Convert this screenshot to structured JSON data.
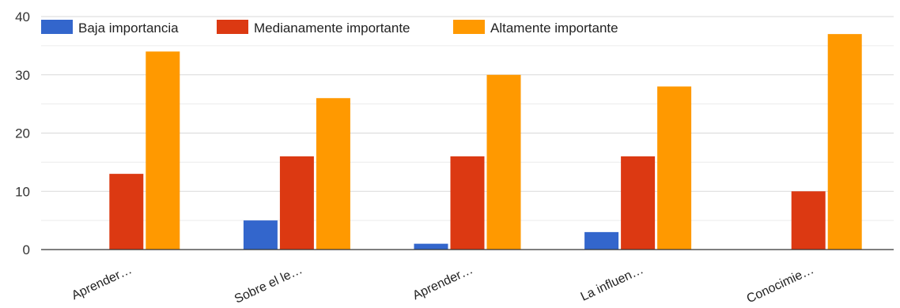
{
  "chart_data": {
    "type": "bar",
    "categories": [
      "Aprender…",
      "Sobre el le…",
      "Aprender…",
      "La influen…",
      "Conocimie…"
    ],
    "series": [
      {
        "name": "Baja importancia",
        "color": "#3366cc",
        "values": [
          0,
          5,
          1,
          3,
          0
        ]
      },
      {
        "name": "Medianamente importante",
        "color": "#dc3912",
        "values": [
          13,
          16,
          16,
          16,
          10
        ]
      },
      {
        "name": "Altamente importante",
        "color": "#ff9900",
        "values": [
          34,
          26,
          30,
          28,
          37
        ]
      }
    ],
    "ylim": [
      0,
      40
    ],
    "yticks": [
      0,
      10,
      20,
      30,
      40
    ],
    "grid": true,
    "legend_position": "top-left"
  }
}
